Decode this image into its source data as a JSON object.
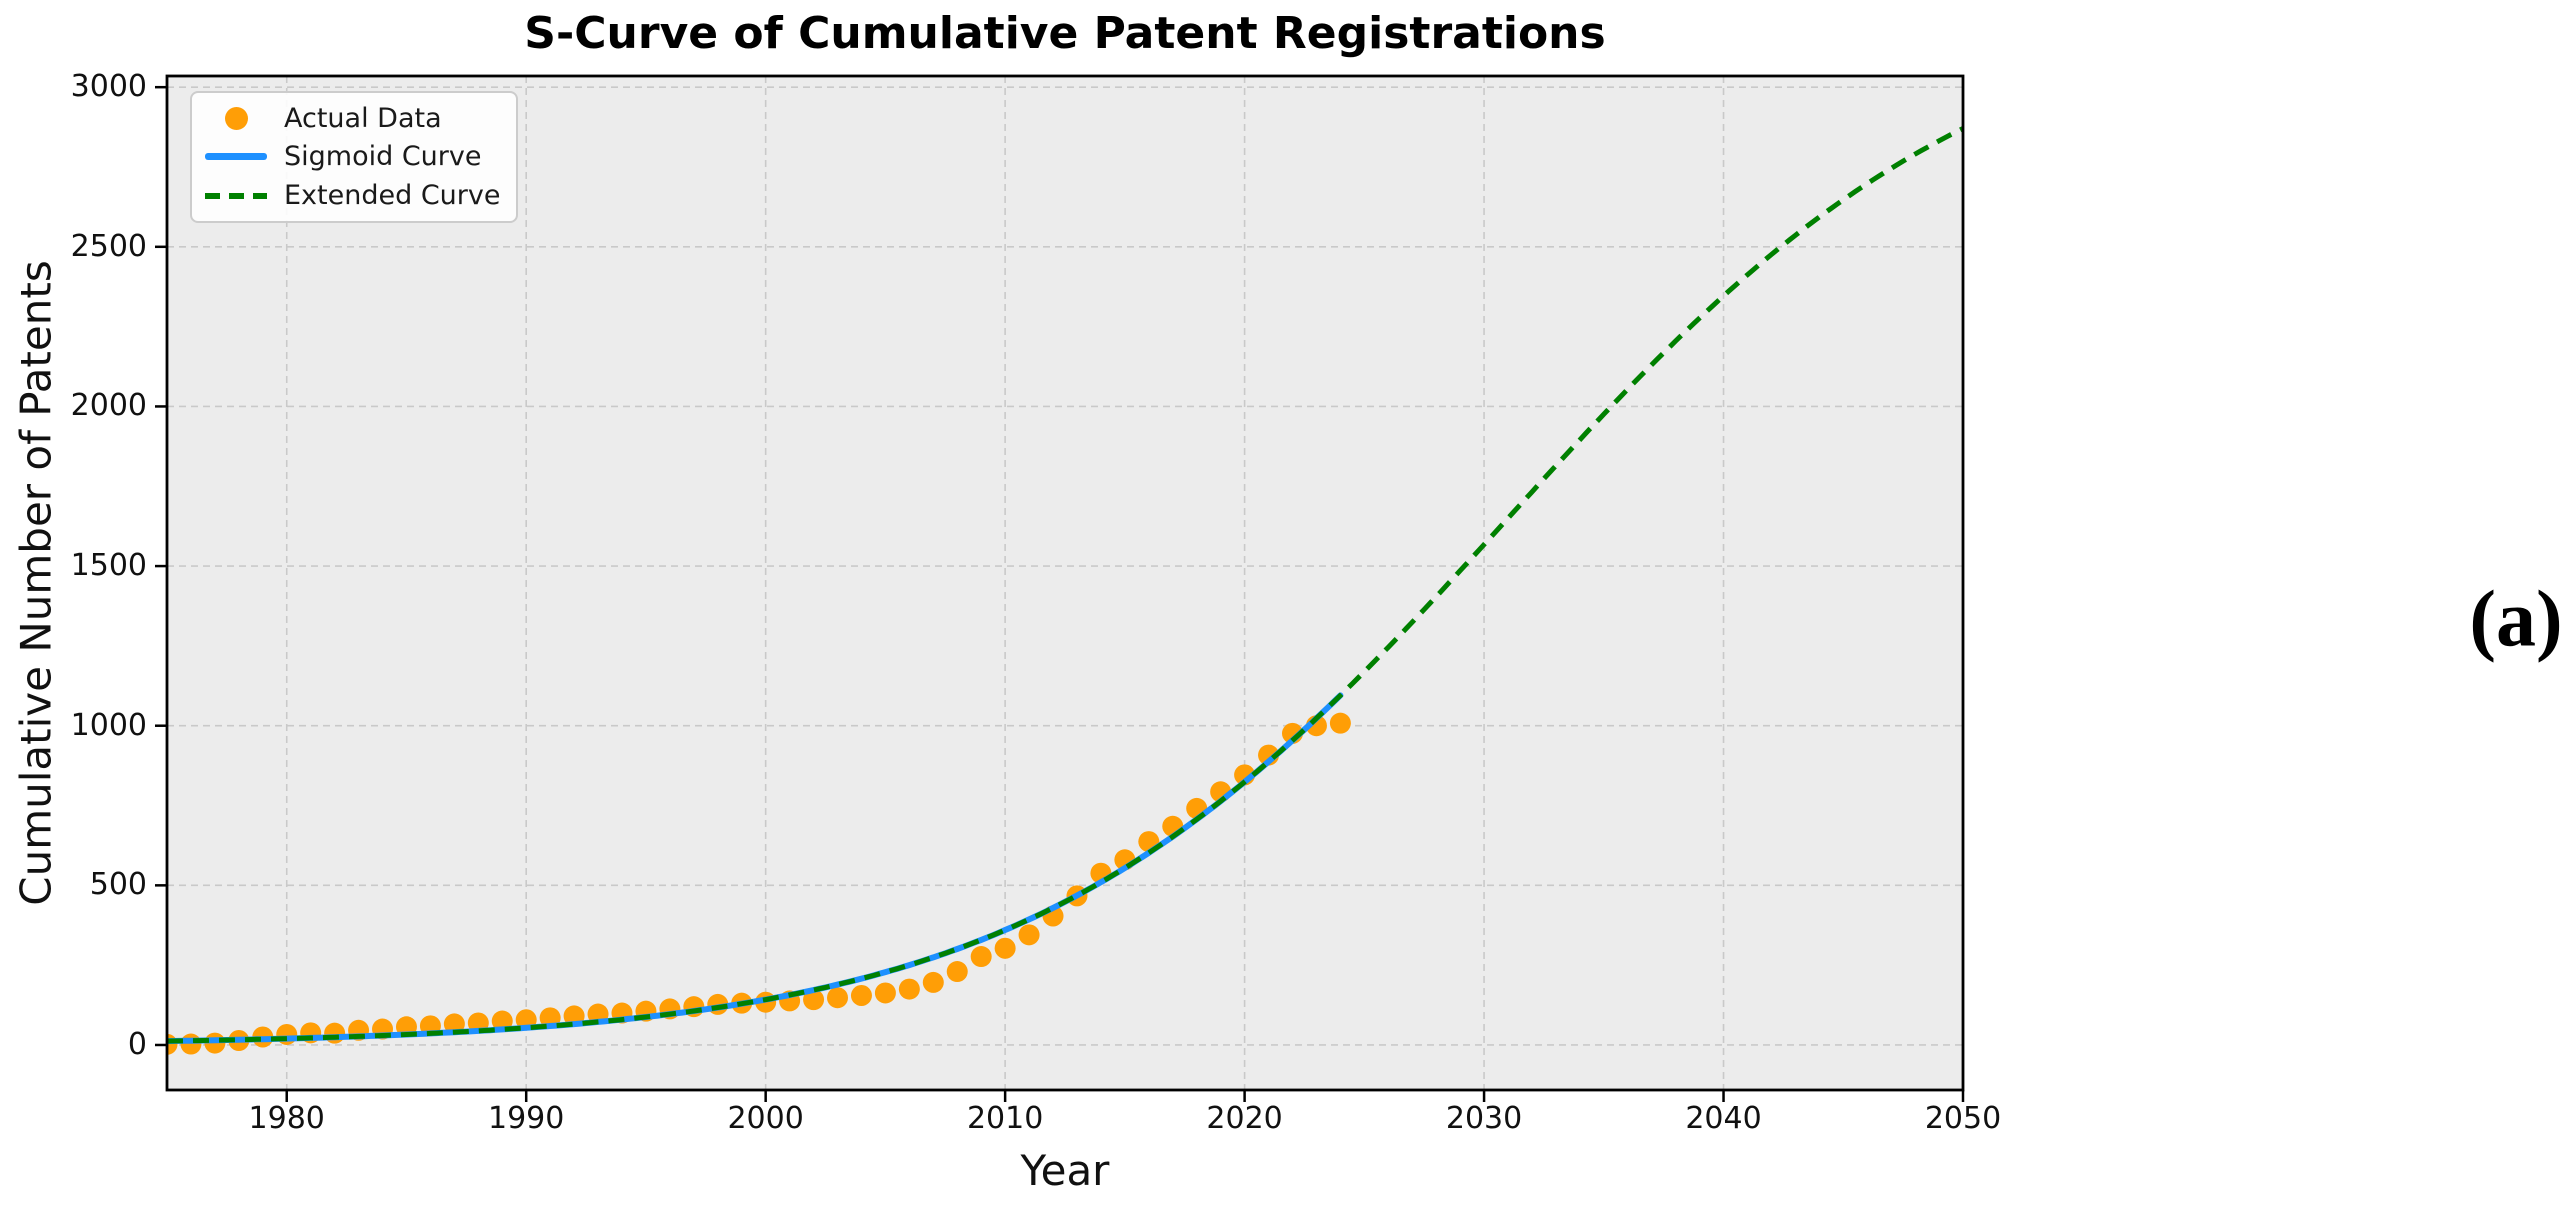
{
  "figure": {
    "title": "S-Curve of Cumulative Patent Registrations",
    "xlabel": "Year",
    "ylabel": "Cumulative Number of Patents",
    "panel_label": "(a)"
  },
  "legend": {
    "items": [
      {
        "label": "Actual Data",
        "swatch": "dot",
        "color": "#FF9E06"
      },
      {
        "label": "Sigmoid Curve",
        "swatch": "solid-line",
        "color": "#1E90FF"
      },
      {
        "label": "Extended Curve",
        "swatch": "dashed-line",
        "color": "#008000"
      }
    ]
  },
  "chart_data": {
    "type": "scatter",
    "title": "S-Curve of Cumulative Patent Registrations",
    "xlabel": "Year",
    "ylabel": "Cumulative Number of Patents",
    "xlim": [
      1975,
      2050
    ],
    "ylim": [
      -141,
      3035
    ],
    "x_ticks": [
      1980,
      1990,
      2000,
      2010,
      2020,
      2030,
      2040,
      2050
    ],
    "y_ticks": [
      0,
      500,
      1000,
      1500,
      2000,
      2500,
      3000
    ],
    "grid": true,
    "legend_position": "upper-left",
    "series": [
      {
        "name": "Actual Data",
        "type": "scatter",
        "color": "#FF9E06",
        "x": [
          1975,
          1976,
          1977,
          1978,
          1979,
          1980,
          1981,
          1982,
          1983,
          1984,
          1985,
          1986,
          1987,
          1988,
          1989,
          1990,
          1991,
          1992,
          1993,
          1994,
          1995,
          1996,
          1997,
          1998,
          1999,
          2000,
          2001,
          2002,
          2003,
          2004,
          2005,
          2006,
          2007,
          2008,
          2009,
          2010,
          2011,
          2012,
          2013,
          2014,
          2015,
          2016,
          2017,
          2018,
          2019,
          2020,
          2021,
          2022,
          2023,
          2024
        ],
        "y": [
          2,
          3,
          6,
          14,
          25,
          33,
          38,
          37,
          46,
          50,
          57,
          60,
          66,
          69,
          75,
          79,
          85,
          91,
          97,
          100,
          106,
          113,
          120,
          127,
          131,
          134,
          138,
          142,
          148,
          155,
          163,
          175,
          196,
          230,
          277,
          303,
          345,
          404,
          467,
          538,
          580,
          637,
          685,
          741,
          793,
          846,
          908,
          976,
          1000,
          1008
        ]
      },
      {
        "name": "Sigmoid Curve",
        "type": "line",
        "style": "solid",
        "color": "#1E90FF",
        "model": "L / (1 + exp(-k*(x - x0)))",
        "params": {
          "L": 3300,
          "k": 0.1,
          "x0": 2031
        },
        "x_range": [
          1975,
          2024
        ]
      },
      {
        "name": "Extended Curve",
        "type": "line",
        "style": "dashed",
        "color": "#008000",
        "model": "L / (1 + exp(-k*(x - x0)))",
        "params": {
          "L": 3300,
          "k": 0.1,
          "x0": 2031
        },
        "x_range": [
          1975,
          2050
        ]
      }
    ]
  },
  "style": {
    "plot_background": "#ECECEC",
    "grid_color": "#C9C9C9",
    "spine_color": "#000000",
    "scatter_color": "#FF9E06",
    "sigmoid_color": "#1E90FF",
    "extended_color": "#008000"
  }
}
